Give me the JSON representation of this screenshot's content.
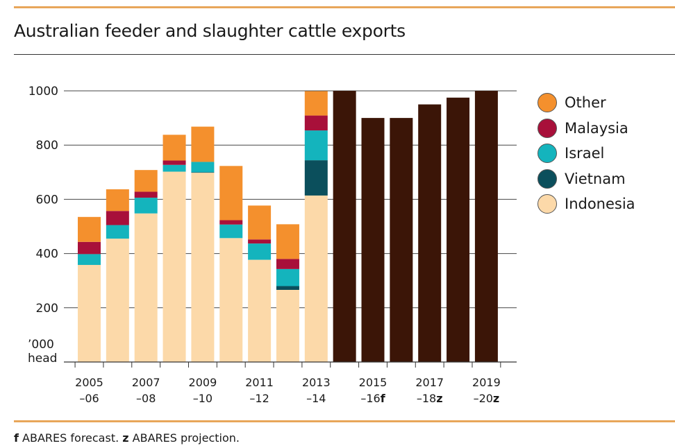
{
  "title": "Australian feeder and slaughter cattle exports",
  "footnote": {
    "f_mark": "f",
    "f_text": " ABARES forecast. ",
    "z_mark": "z",
    "z_text": " ABARES projection."
  },
  "colors": {
    "Indonesia": "#fcd9a9",
    "Vietnam": "#0b4f5c",
    "Israel": "#14b4bd",
    "Malaysia": "#a8103a",
    "Other": "#f4902d",
    "Forecast": "#3b1507",
    "accent_rule": "#e8a65a"
  },
  "legend": [
    {
      "name": "Other",
      "color": "#f4902d"
    },
    {
      "name": "Malaysia",
      "color": "#a8103a"
    },
    {
      "name": "Israel",
      "color": "#14b4bd"
    },
    {
      "name": "Vietnam",
      "color": "#0b4f5c"
    },
    {
      "name": "Indonesia",
      "color": "#fcd9a9"
    }
  ],
  "chart_data": {
    "type": "bar",
    "stacked": true,
    "title": "Australian feeder and slaughter cattle exports",
    "ylabel": "’000 head",
    "ylim": [
      0,
      1000
    ],
    "yticks": [
      200,
      400,
      600,
      800,
      1000
    ],
    "grid": true,
    "legend_position": "right",
    "x_labels": [
      {
        "line1": "2005",
        "line2": "–06",
        "mark": ""
      },
      {
        "line1": "2007",
        "line2": "–08",
        "mark": ""
      },
      {
        "line1": "2009",
        "line2": "–10",
        "mark": ""
      },
      {
        "line1": "2011",
        "line2": "–12",
        "mark": ""
      },
      {
        "line1": "2013",
        "line2": "–14",
        "mark": ""
      },
      {
        "line1": "2015",
        "line2": "–16",
        "mark": "f"
      },
      {
        "line1": "2017",
        "line2": "–18",
        "mark": "z"
      },
      {
        "line1": "2019",
        "line2": "–20",
        "mark": "z"
      }
    ],
    "categories": [
      "2005–06",
      "2006–07",
      "2007–08",
      "2008–09",
      "2009–10",
      "2010–11",
      "2011–12",
      "2012–13",
      "2013–14",
      "2014–15",
      "2015–16f",
      "2016–17z",
      "2017–18z",
      "2018–19z",
      "2019–20z"
    ],
    "series": [
      {
        "name": "Indonesia",
        "values": [
          358,
          455,
          548,
          702,
          698,
          457,
          377,
          266,
          614,
          null,
          null,
          null,
          null,
          null,
          null
        ]
      },
      {
        "name": "Vietnam",
        "values": [
          0,
          0,
          0,
          0,
          2,
          0,
          0,
          14,
          130,
          null,
          null,
          null,
          null,
          null,
          null
        ]
      },
      {
        "name": "Israel",
        "values": [
          40,
          50,
          58,
          25,
          38,
          50,
          60,
          63,
          110,
          null,
          null,
          null,
          null,
          null,
          null
        ]
      },
      {
        "name": "Malaysia",
        "values": [
          45,
          52,
          22,
          16,
          0,
          16,
          15,
          37,
          55,
          null,
          null,
          null,
          null,
          null,
          null
        ]
      },
      {
        "name": "Other",
        "values": [
          92,
          80,
          80,
          95,
          130,
          200,
          125,
          128,
          90,
          null,
          null,
          null,
          null,
          null,
          null
        ]
      }
    ],
    "totals_forecast": [
      null,
      null,
      null,
      null,
      null,
      null,
      null,
      null,
      null,
      1000,
      900,
      900,
      950,
      975,
      1000
    ]
  }
}
